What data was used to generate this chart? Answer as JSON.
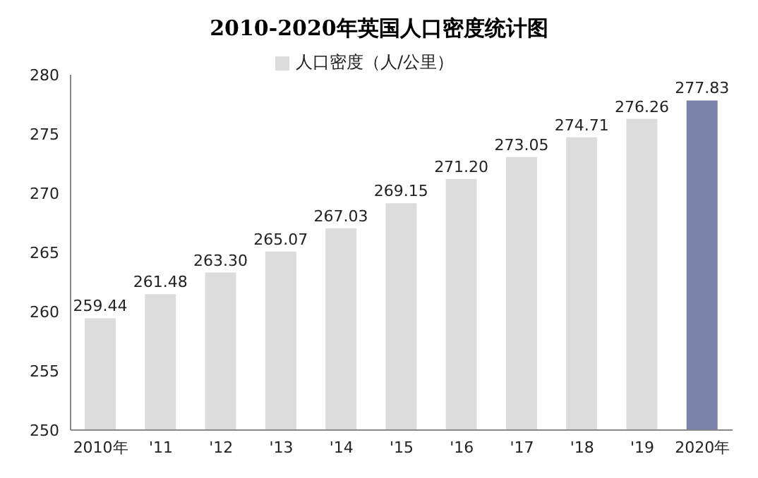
{
  "chart_data": {
    "type": "bar",
    "title": "2010-2020年英国人口密度统计图",
    "categories": [
      "2010年",
      "'11",
      "'12",
      "'13",
      "'14",
      "'15",
      "'16",
      "'17",
      "'18",
      "'19",
      "2020年"
    ],
    "series": [
      {
        "name": "人口密度（人/公里）",
        "values": [
          259.44,
          261.48,
          263.3,
          265.07,
          267.03,
          269.15,
          271.2,
          273.05,
          274.71,
          276.26,
          277.83
        ]
      }
    ],
    "colors": [
      "#dcdcdc",
      "#dcdcdc",
      "#dcdcdc",
      "#dcdcdc",
      "#dcdcdc",
      "#dcdcdc",
      "#dcdcdc",
      "#dcdcdc",
      "#dcdcdc",
      "#dcdcdc",
      "#7b84a8"
    ],
    "value_labels": [
      "259.44",
      "261.48",
      "263.30",
      "265.07",
      "267.03",
      "269.15",
      "271.20",
      "273.05",
      "274.71",
      "276.26",
      "277.83"
    ],
    "ylim": [
      250,
      280
    ],
    "yticks": [
      250,
      255,
      260,
      265,
      270,
      275,
      280
    ],
    "grid": false,
    "legend": "top"
  }
}
